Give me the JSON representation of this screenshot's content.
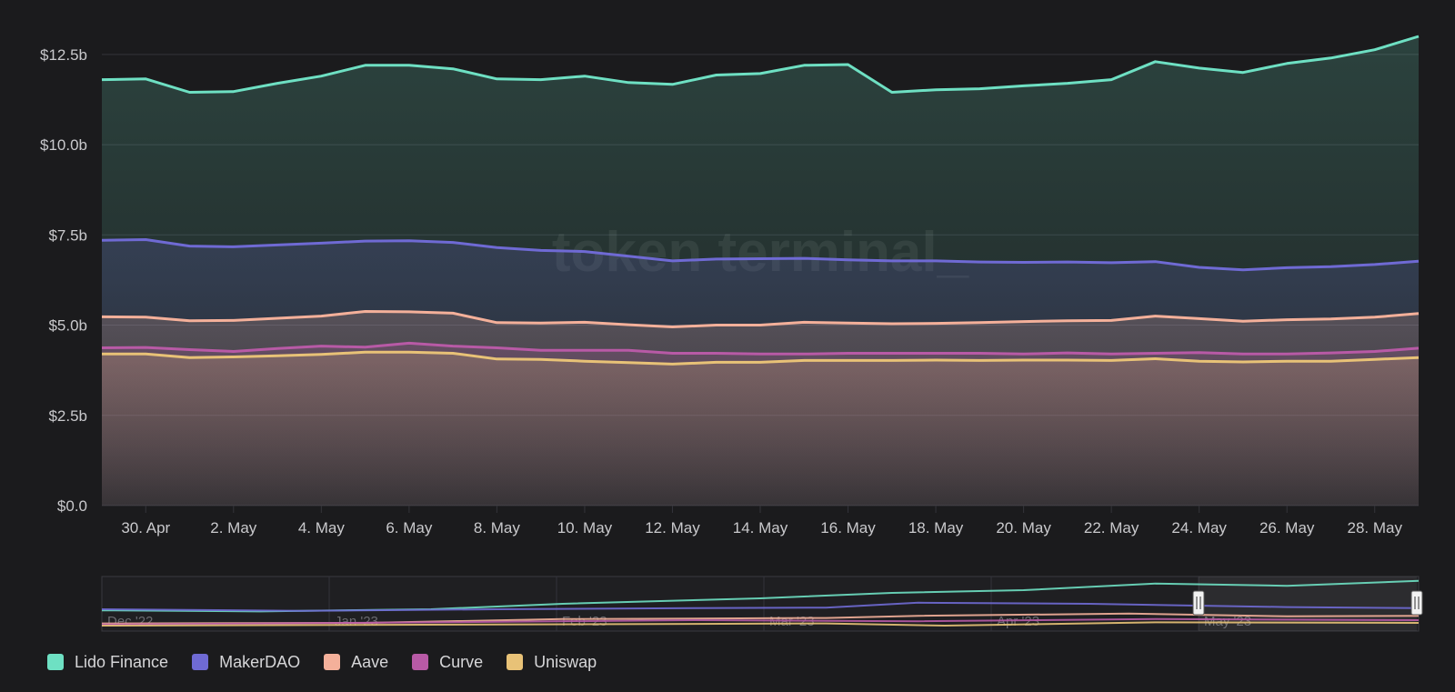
{
  "watermark": "token terminal_",
  "colors": {
    "background": "#1b1b1d",
    "grid": "#34343a",
    "axis_text": "#c9c9cc"
  },
  "chart_data": {
    "type": "area",
    "title": "",
    "xlabel": "",
    "ylabel": "",
    "y_unit_prefix": "$",
    "ylim": [
      0,
      13
    ],
    "y_ticks": [
      0,
      2.5,
      5,
      7.5,
      10,
      12.5
    ],
    "y_tick_labels": [
      "$0.0",
      "$2.5b",
      "$5.0b",
      "$7.5b",
      "$10.0b",
      "$12.5b"
    ],
    "x": [
      "29 Apr",
      "30 Apr",
      "1 May",
      "2 May",
      "3 May",
      "4 May",
      "5 May",
      "6 May",
      "7 May",
      "8 May",
      "9 May",
      "10 May",
      "11 May",
      "12 May",
      "13 May",
      "14 May",
      "15 May",
      "16 May",
      "17 May",
      "18 May",
      "19 May",
      "20 May",
      "21 May",
      "22 May",
      "23 May",
      "24 May",
      "25 May",
      "26 May",
      "27 May",
      "28 May",
      "29 May"
    ],
    "x_tick_labels": [
      "30. Apr",
      "2. May",
      "4. May",
      "6. May",
      "8. May",
      "10. May",
      "12. May",
      "14. May",
      "16. May",
      "18. May",
      "20. May",
      "22. May",
      "24. May",
      "26. May",
      "28. May"
    ],
    "series": [
      {
        "name": "Lido Finance",
        "color": "#6ee0c3",
        "values": [
          11.8,
          11.82,
          11.45,
          11.47,
          11.7,
          11.9,
          12.2,
          12.2,
          12.1,
          11.82,
          11.8,
          11.9,
          11.72,
          11.67,
          11.93,
          11.97,
          12.2,
          12.22,
          11.45,
          11.52,
          11.55,
          11.63,
          11.7,
          11.8,
          12.3,
          12.12,
          12.0,
          12.25,
          12.4,
          12.63,
          13.0
        ]
      },
      {
        "name": "MakerDAO",
        "color": "#6f6ad4",
        "values": [
          7.35,
          7.37,
          7.19,
          7.17,
          7.22,
          7.27,
          7.33,
          7.34,
          7.29,
          7.15,
          7.07,
          7.04,
          6.91,
          6.78,
          6.83,
          6.84,
          6.85,
          6.81,
          6.78,
          6.78,
          6.75,
          6.74,
          6.75,
          6.73,
          6.76,
          6.6,
          6.53,
          6.59,
          6.62,
          6.68,
          6.77
        ]
      },
      {
        "name": "Aave",
        "color": "#f4b09a",
        "values": [
          5.23,
          5.22,
          5.12,
          5.13,
          5.19,
          5.25,
          5.38,
          5.37,
          5.33,
          5.07,
          5.06,
          5.08,
          5.01,
          4.95,
          5.0,
          5.0,
          5.08,
          5.06,
          5.04,
          5.05,
          5.07,
          5.1,
          5.12,
          5.13,
          5.25,
          5.18,
          5.11,
          5.15,
          5.17,
          5.22,
          5.32
        ]
      },
      {
        "name": "Curve",
        "color": "#b85aa6",
        "values": [
          4.37,
          4.38,
          4.32,
          4.27,
          4.35,
          4.42,
          4.39,
          4.5,
          4.42,
          4.37,
          4.3,
          4.3,
          4.3,
          4.22,
          4.22,
          4.2,
          4.2,
          4.22,
          4.22,
          4.22,
          4.22,
          4.2,
          4.23,
          4.2,
          4.22,
          4.24,
          4.2,
          4.2,
          4.23,
          4.27,
          4.36
        ]
      },
      {
        "name": "Uniswap",
        "color": "#e8c277",
        "values": [
          4.2,
          4.2,
          4.1,
          4.12,
          4.15,
          4.19,
          4.25,
          4.25,
          4.22,
          4.06,
          4.05,
          4.0,
          3.96,
          3.92,
          3.97,
          3.97,
          4.02,
          4.02,
          4.02,
          4.03,
          4.02,
          4.03,
          4.03,
          4.02,
          4.07,
          4.0,
          3.98,
          4.0,
          4.0,
          4.05,
          4.1
        ]
      }
    ]
  },
  "navigator": {
    "labels": [
      "Dec '22",
      "Jan '23",
      "Feb '23",
      "Mar '23",
      "Apr '23",
      "May '23"
    ],
    "handle_left_icon": "drag-handle-icon",
    "handle_right_icon": "drag-handle-icon"
  },
  "legend": [
    {
      "label": "Lido Finance",
      "color": "#6ee0c3"
    },
    {
      "label": "MakerDAO",
      "color": "#6f6ad4"
    },
    {
      "label": "Aave",
      "color": "#f4b09a"
    },
    {
      "label": "Curve",
      "color": "#b85aa6"
    },
    {
      "label": "Uniswap",
      "color": "#e8c277"
    }
  ]
}
